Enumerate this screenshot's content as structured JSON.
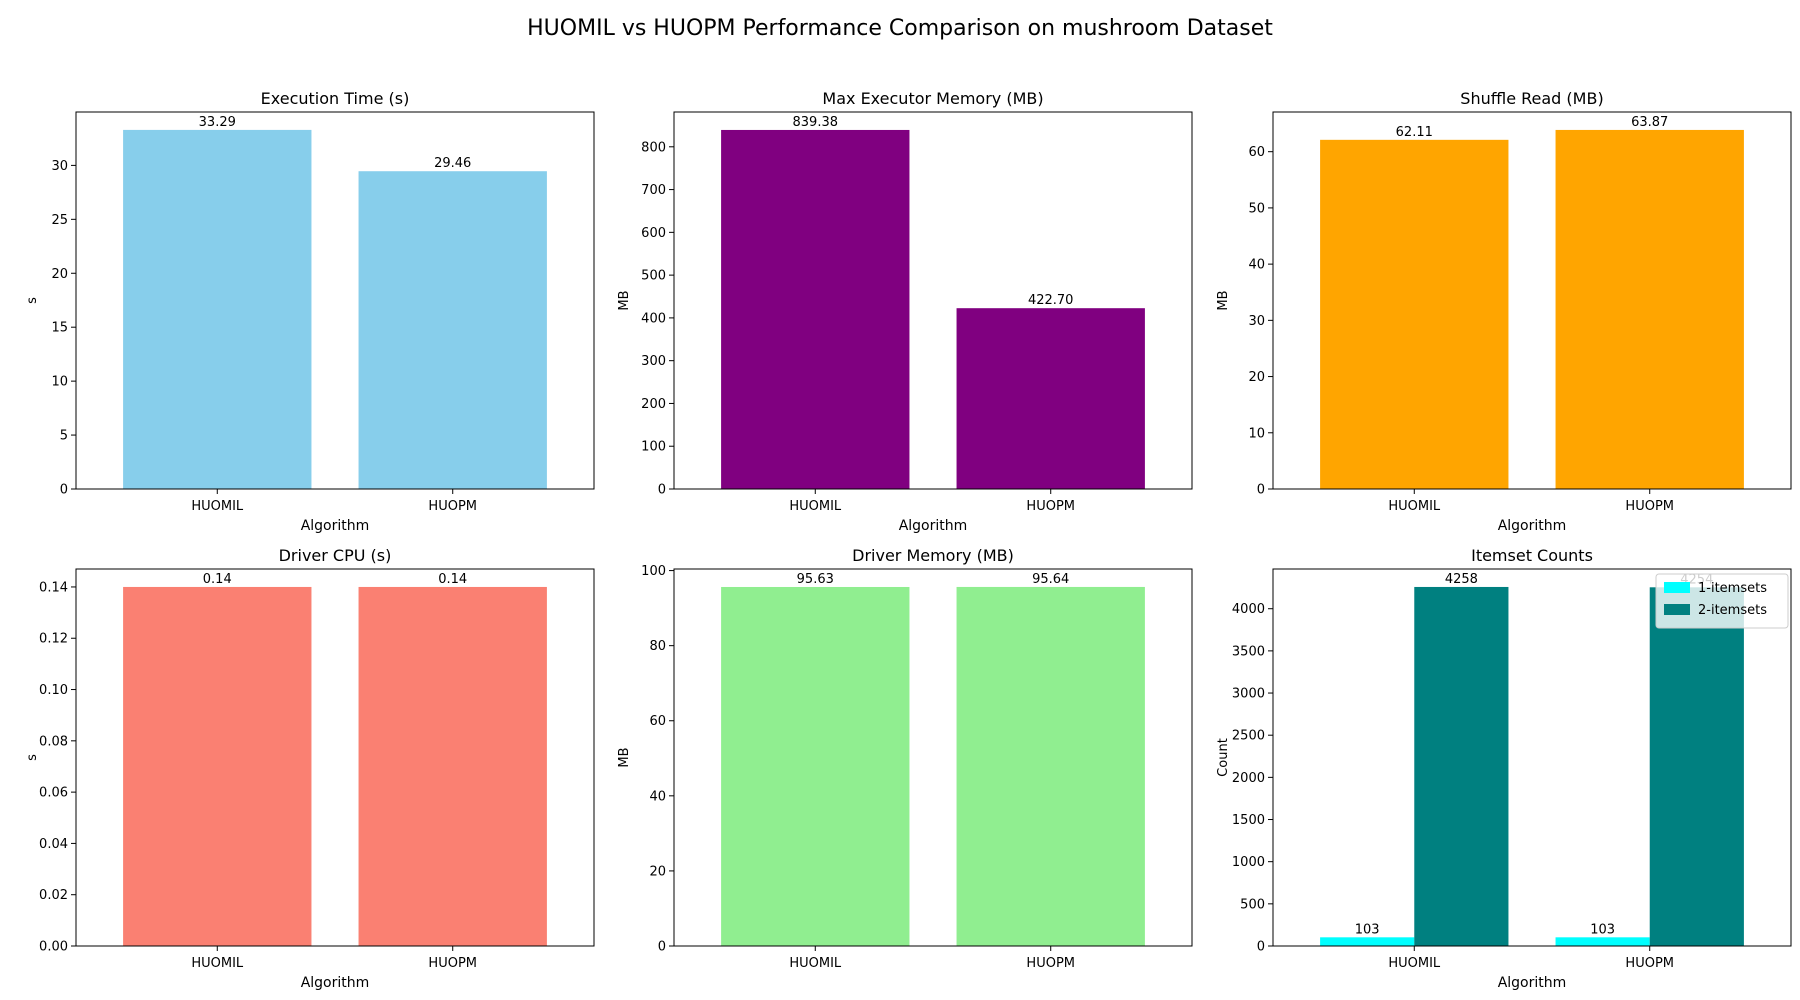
{
  "figure": {
    "title": "HUOMIL vs HUOPM Performance Comparison on mushroom Dataset"
  },
  "chart_data": [
    {
      "type": "bar",
      "title": "Execution Time (s)",
      "xlabel": "Algorithm",
      "ylabel": "s",
      "categories": [
        "HUOMIL",
        "HUOPM"
      ],
      "series": [
        {
          "values": [
            33.29,
            29.46
          ],
          "color": "#87CEEB",
          "labels": [
            "33.29",
            "29.46"
          ]
        }
      ],
      "ylim": [
        0,
        34.95
      ],
      "yticks": [
        0,
        5,
        10,
        15,
        20,
        25,
        30
      ],
      "ytick_labels": [
        "0",
        "5",
        "10",
        "15",
        "20",
        "25",
        "30"
      ],
      "legend": false,
      "grid": false
    },
    {
      "type": "bar",
      "title": "Max Executor Memory (MB)",
      "xlabel": "Algorithm",
      "ylabel": "MB",
      "categories": [
        "HUOMIL",
        "HUOPM"
      ],
      "series": [
        {
          "values": [
            839.38,
            422.7
          ],
          "color": "#800080",
          "labels": [
            "839.38",
            "422.70"
          ]
        }
      ],
      "ylim": [
        0,
        881.35
      ],
      "yticks": [
        0,
        100,
        200,
        300,
        400,
        500,
        600,
        700,
        800
      ],
      "ytick_labels": [
        "0",
        "100",
        "200",
        "300",
        "400",
        "500",
        "600",
        "700",
        "800"
      ],
      "legend": false,
      "grid": false
    },
    {
      "type": "bar",
      "title": "Shuffle Read (MB)",
      "xlabel": "Algorithm",
      "ylabel": "MB",
      "categories": [
        "HUOMIL",
        "HUOPM"
      ],
      "series": [
        {
          "values": [
            62.11,
            63.87
          ],
          "color": "#FFA500",
          "labels": [
            "62.11",
            "63.87"
          ]
        }
      ],
      "ylim": [
        0,
        67.06
      ],
      "yticks": [
        0,
        10,
        20,
        30,
        40,
        50,
        60
      ],
      "ytick_labels": [
        "0",
        "10",
        "20",
        "30",
        "40",
        "50",
        "60"
      ],
      "legend": false,
      "grid": false
    },
    {
      "type": "bar",
      "title": "Driver CPU (s)",
      "xlabel": "Algorithm",
      "ylabel": "s",
      "categories": [
        "HUOMIL",
        "HUOPM"
      ],
      "series": [
        {
          "values": [
            0.14,
            0.14
          ],
          "color": "#FA8072",
          "labels": [
            "0.14",
            "0.14"
          ]
        }
      ],
      "ylim": [
        0,
        0.147
      ],
      "yticks": [
        0,
        0.02,
        0.04,
        0.06,
        0.08,
        0.1,
        0.12,
        0.14
      ],
      "ytick_labels": [
        "0.00",
        "0.02",
        "0.04",
        "0.06",
        "0.08",
        "0.10",
        "0.12",
        "0.14"
      ],
      "legend": false,
      "grid": false
    },
    {
      "type": "bar",
      "title": "Driver Memory (MB)",
      "xlabel": "",
      "ylabel": "MB",
      "categories": [
        "HUOMIL",
        "HUOPM"
      ],
      "series": [
        {
          "values": [
            95.63,
            95.64
          ],
          "color": "#90EE90",
          "labels": [
            "95.63",
            "95.64"
          ]
        }
      ],
      "ylim": [
        0,
        100.42
      ],
      "yticks": [
        0,
        20,
        40,
        60,
        80,
        100
      ],
      "ytick_labels": [
        "0",
        "20",
        "40",
        "60",
        "80",
        "100"
      ],
      "legend": false,
      "grid": false
    },
    {
      "type": "bar",
      "title": "Itemset Counts",
      "xlabel": "Algorithm",
      "ylabel": "Count",
      "categories": [
        "HUOMIL",
        "HUOPM"
      ],
      "series": [
        {
          "name": "1-itemsets",
          "values": [
            103,
            103
          ],
          "color": "#00FFFF",
          "labels": [
            "103",
            "103"
          ]
        },
        {
          "name": "2-itemsets",
          "values": [
            4258,
            4254
          ],
          "color": "#008080",
          "labels": [
            "4258",
            "4254"
          ]
        }
      ],
      "ylim": [
        0,
        4471
      ],
      "yticks": [
        0,
        500,
        1000,
        1500,
        2000,
        2500,
        3000,
        3500,
        4000
      ],
      "ytick_labels": [
        "0",
        "500",
        "1000",
        "1500",
        "2000",
        "2500",
        "3000",
        "3500",
        "4000"
      ],
      "legend": true,
      "legend_position": "top-right",
      "grid": false
    }
  ]
}
